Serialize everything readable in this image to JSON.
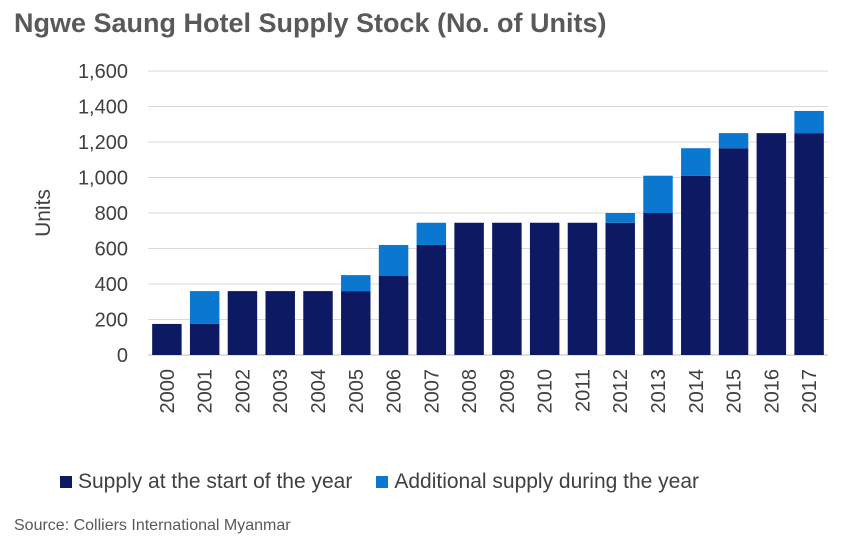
{
  "chart_data": {
    "type": "bar",
    "stacked": true,
    "title": "Ngwe Saung Hotel Supply Stock (No. of Units)",
    "ylabel": "Units",
    "xlabel": "",
    "ylim": [
      0,
      1600
    ],
    "yticks": [
      "0",
      "200",
      "400",
      "600",
      "800",
      "1,000",
      "1,200",
      "1,400",
      "1,600"
    ],
    "ytick_values": [
      0,
      200,
      400,
      600,
      800,
      1000,
      1200,
      1400,
      1600
    ],
    "grid": true,
    "legend_position": "bottom",
    "categories": [
      "2000",
      "2001",
      "2002",
      "2003",
      "2004",
      "2005",
      "2006",
      "2007",
      "2008",
      "2009",
      "2010",
      "2011",
      "2012",
      "2013",
      "2014",
      "2015",
      "2016",
      "2017"
    ],
    "series": [
      {
        "name": "Supply at the start of the year",
        "color": "#0d1a63",
        "values": [
          175,
          175,
          360,
          360,
          360,
          360,
          445,
          620,
          745,
          745,
          745,
          745,
          745,
          800,
          1010,
          1165,
          1250,
          1250
        ]
      },
      {
        "name": "Additional supply during the year",
        "color": "#0a78d1",
        "values": [
          0,
          185,
          0,
          0,
          0,
          90,
          175,
          125,
          0,
          0,
          0,
          0,
          55,
          210,
          155,
          85,
          0,
          125
        ]
      }
    ],
    "source": "Source: Colliers International Myanmar"
  }
}
